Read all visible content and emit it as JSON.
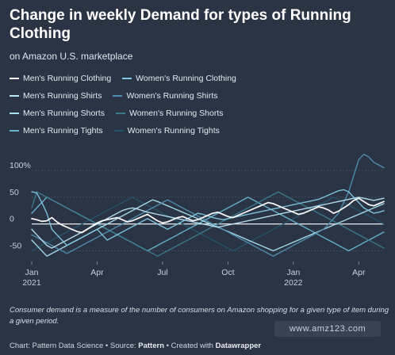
{
  "title": "Change in weekly Demand for types of Running Clothing",
  "subtitle": "on Amazon U.S. marketplace",
  "note": "Consumer demand is a measure of the number of consumers on Amazon shopping for a given type of item during a given period.",
  "credit": {
    "prefix": "Chart: Pattern Data Science • Source: ",
    "source": "Pattern",
    "middle": " • Created with ",
    "tool": "Datawrapper"
  },
  "watermark": "www.amz123.com",
  "chart_data": {
    "type": "line",
    "title": "Change in weekly Demand for types of Running Clothing",
    "subtitle": "on Amazon U.S. marketplace",
    "ylim": [
      -70,
      140
    ],
    "y_ticks": [
      {
        "value": 100,
        "label": "100%"
      },
      {
        "value": 50,
        "label": "50"
      },
      {
        "value": 0,
        "label": "0"
      },
      {
        "value": -50,
        "label": "-50"
      }
    ],
    "x_ticks": [
      {
        "week": 0,
        "label": "Jan",
        "sublabel": "2021"
      },
      {
        "week": 13,
        "label": "Apr",
        "sublabel": ""
      },
      {
        "week": 26,
        "label": "Jul",
        "sublabel": ""
      },
      {
        "week": 39,
        "label": "Oct",
        "sublabel": ""
      },
      {
        "week": 52,
        "label": "Jan",
        "sublabel": "2022"
      },
      {
        "week": 65,
        "label": "Apr",
        "sublabel": ""
      }
    ],
    "x_count": 71,
    "grid": true,
    "legend": "top",
    "series": [
      {
        "name": "Men's Running Clothing",
        "color": "#ffffff",
        "values": [
          10,
          8,
          5,
          6,
          12,
          4,
          -2,
          -6,
          -10,
          -14,
          -16,
          -10,
          -4,
          2,
          6,
          8,
          10,
          12,
          8,
          4,
          6,
          10,
          14,
          18,
          12,
          6,
          2,
          4,
          8,
          12,
          14,
          10,
          6,
          8,
          12,
          16,
          20,
          22,
          18,
          14,
          12,
          16,
          20,
          24,
          28,
          32,
          36,
          40,
          38,
          34,
          30,
          26,
          22,
          18,
          20,
          24,
          28,
          32,
          30,
          26,
          20,
          24,
          30,
          36,
          44,
          48,
          42,
          36,
          34,
          38,
          42
        ]
      },
      {
        "name": "Women's Running Clothing",
        "color": "#7ec8e0",
        "values": [
          60,
          58,
          40,
          20,
          -10,
          -20,
          -30,
          -40,
          -35,
          -30,
          -25,
          -20,
          -15,
          -10,
          -20,
          -30,
          -25,
          -20,
          -15,
          -10,
          -5,
          0,
          5,
          10,
          5,
          0,
          -5,
          -10,
          -5,
          0,
          5,
          10,
          15,
          20,
          18,
          15,
          12,
          10,
          8,
          10,
          12,
          14,
          16,
          18,
          20,
          22,
          24,
          26,
          28,
          30,
          32,
          34,
          36,
          38,
          40,
          42,
          44,
          46,
          50,
          54,
          58,
          62,
          64,
          60,
          50,
          40,
          30,
          25,
          20,
          22,
          25
        ]
      },
      {
        "name": "Men's Running Shirts",
        "color": "#b9e4f2",
        "values": [
          -10,
          -20,
          -30,
          -40,
          -45,
          -40,
          -35,
          -30,
          -25,
          -20,
          -15,
          -10,
          -5,
          0,
          5,
          10,
          15,
          20,
          25,
          28,
          30,
          28,
          25,
          22,
          20,
          18,
          16,
          14,
          12,
          10,
          8,
          6,
          4,
          2,
          0,
          -2,
          -4,
          -6,
          -4,
          -2,
          0,
          2,
          4,
          6,
          8,
          10,
          12,
          14,
          16,
          18,
          20,
          22,
          24,
          26,
          28,
          30,
          32,
          34,
          36,
          38,
          40,
          42,
          44,
          46,
          48,
          50,
          48,
          46,
          44,
          46,
          48
        ]
      },
      {
        "name": "Women's Running Shirts",
        "color": "#4f8fb0",
        "values": [
          -20,
          -25,
          -30,
          -35,
          -40,
          -45,
          -50,
          -55,
          -50,
          -45,
          -40,
          -35,
          -30,
          -25,
          -20,
          -15,
          -10,
          -5,
          0,
          5,
          10,
          15,
          20,
          25,
          30,
          35,
          40,
          45,
          40,
          35,
          30,
          25,
          20,
          15,
          10,
          5,
          0,
          -5,
          -10,
          -15,
          -20,
          -25,
          -30,
          -35,
          -40,
          -45,
          -50,
          -55,
          -60,
          -55,
          -50,
          -45,
          -40,
          -35,
          -30,
          -25,
          -20,
          -15,
          -10,
          0,
          10,
          20,
          40,
          60,
          90,
          120,
          130,
          125,
          115,
          110,
          105
        ]
      },
      {
        "name": "Men's Running Shorts",
        "color": "#a8e0ee",
        "values": [
          -30,
          -40,
          -50,
          -60,
          -55,
          -50,
          -45,
          -40,
          -35,
          -30,
          -25,
          -20,
          -15,
          -10,
          -5,
          0,
          5,
          10,
          15,
          20,
          25,
          30,
          35,
          40,
          45,
          42,
          38,
          34,
          30,
          26,
          22,
          18,
          14,
          10,
          6,
          2,
          -2,
          -6,
          -10,
          -14,
          -18,
          -22,
          -26,
          -30,
          -34,
          -38,
          -42,
          -46,
          -50,
          -46,
          -42,
          -38,
          -34,
          -30,
          -26,
          -22,
          -18,
          -14,
          -10,
          -6,
          -2,
          2,
          6,
          10,
          14,
          18,
          22,
          26,
          30,
          34,
          38
        ]
      },
      {
        "name": "Women's Running Shorts",
        "color": "#3a7a8c",
        "values": [
          30,
          60,
          55,
          50,
          45,
          40,
          35,
          30,
          25,
          20,
          15,
          10,
          5,
          0,
          -5,
          -10,
          -15,
          -20,
          -25,
          -30,
          -35,
          -40,
          -45,
          -50,
          -55,
          -60,
          -55,
          -50,
          -45,
          -40,
          -35,
          -30,
          -25,
          -20,
          -15,
          -10,
          -5,
          0,
          5,
          10,
          15,
          20,
          25,
          30,
          35,
          40,
          45,
          50,
          55,
          60,
          55,
          50,
          45,
          40,
          35,
          30,
          25,
          20,
          15,
          10,
          5,
          0,
          -5,
          -10,
          -15,
          -20,
          -25,
          -30,
          -35,
          -40,
          -45
        ]
      },
      {
        "name": "Men's Running Tights",
        "color": "#66b5cf",
        "values": [
          20,
          30,
          40,
          50,
          45,
          40,
          35,
          30,
          25,
          20,
          15,
          10,
          5,
          0,
          -5,
          -10,
          -15,
          -20,
          -25,
          -30,
          -35,
          -40,
          -45,
          -50,
          -45,
          -40,
          -35,
          -30,
          -25,
          -20,
          -15,
          -10,
          -5,
          0,
          5,
          10,
          15,
          20,
          25,
          30,
          35,
          40,
          45,
          50,
          45,
          40,
          35,
          30,
          25,
          20,
          15,
          10,
          5,
          0,
          -5,
          -10,
          -15,
          -20,
          -25,
          -30,
          -35,
          -40,
          -45,
          -50,
          -45,
          -40,
          -35,
          -30,
          -25,
          -20,
          -15
        ]
      },
      {
        "name": "Women's Running Tights",
        "color": "#24546a",
        "values": [
          -50,
          -45,
          -40,
          -35,
          -30,
          -25,
          -20,
          -15,
          -10,
          -5,
          0,
          5,
          10,
          15,
          20,
          25,
          30,
          35,
          40,
          45,
          50,
          45,
          40,
          35,
          30,
          25,
          20,
          15,
          10,
          5,
          0,
          -5,
          -10,
          -15,
          -20,
          -25,
          -30,
          -35,
          -40,
          -45,
          -50,
          -45,
          -40,
          -35,
          -30,
          -25,
          -20,
          -15,
          -10,
          -5,
          0,
          5,
          10,
          15,
          20,
          25,
          30,
          35,
          40,
          45,
          50,
          45,
          40,
          35,
          30,
          25,
          20,
          15,
          10,
          5,
          0
        ]
      }
    ]
  }
}
